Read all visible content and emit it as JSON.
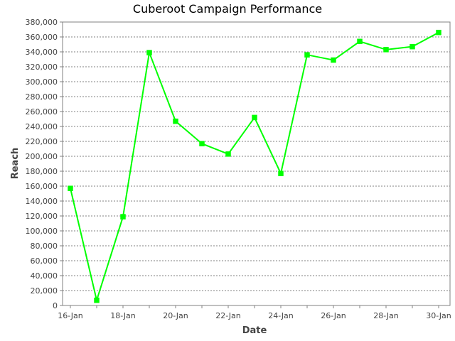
{
  "chart_data": {
    "type": "line",
    "title": "Cuberoot Campaign Performance",
    "xlabel": "Date",
    "ylabel": "Reach",
    "x": [
      "16-Jan",
      "17-Jan",
      "18-Jan",
      "19-Jan",
      "20-Jan",
      "21-Jan",
      "22-Jan",
      "23-Jan",
      "24-Jan",
      "25-Jan",
      "26-Jan",
      "27-Jan",
      "28-Jan",
      "29-Jan",
      "30-Jan"
    ],
    "x_tick_labels": [
      "16-Jan",
      "18-Jan",
      "20-Jan",
      "22-Jan",
      "24-Jan",
      "26-Jan",
      "28-Jan",
      "30-Jan"
    ],
    "series": [
      {
        "values": [
          157000,
          7000,
          119000,
          339000,
          247000,
          217000,
          203000,
          252000,
          177000,
          336000,
          329000,
          354000,
          343000,
          347000,
          366000
        ]
      }
    ],
    "ylim": [
      0,
      380000
    ],
    "y_ticks": [
      0,
      20000,
      40000,
      60000,
      80000,
      100000,
      120000,
      140000,
      160000,
      180000,
      200000,
      220000,
      240000,
      260000,
      280000,
      300000,
      320000,
      340000,
      360000,
      380000
    ],
    "y_tick_labels": [
      "0",
      "20,000",
      "40,000",
      "60,000",
      "80,000",
      "100,000",
      "120,000",
      "140,000",
      "160,000",
      "180,000",
      "200,000",
      "220,000",
      "240,000",
      "260,000",
      "280,000",
      "300,000",
      "320,000",
      "340,000",
      "360,000",
      "380,000"
    ],
    "grid": true,
    "grid_axis": "y",
    "marker": "square",
    "colors": {
      "series": "#00ff00",
      "grid": "#808080",
      "axis": "#808080",
      "text": "#444444"
    }
  }
}
